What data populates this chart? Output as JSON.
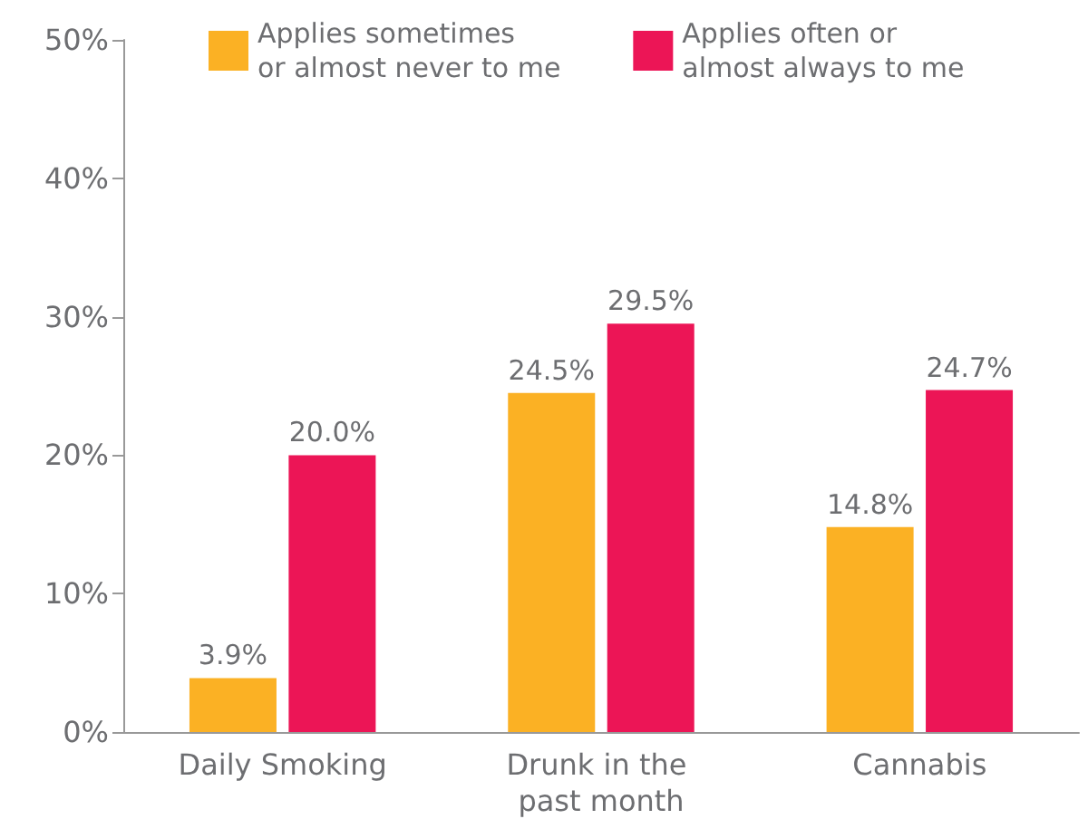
{
  "chart_data": {
    "type": "bar",
    "categories": [
      "Daily Smoking",
      "Drunk in the past month",
      "Cannabis"
    ],
    "series": [
      {
        "name": "Applies sometimes\nor almost never to me",
        "color": "#fbb124",
        "values": [
          3.9,
          24.5,
          14.8
        ],
        "value_labels": [
          "3.9%",
          "24.5%",
          "14.8%"
        ]
      },
      {
        "name": "Applies often or\nalmost always to me",
        "color": "#ec1556",
        "values": [
          20.0,
          29.5,
          24.7
        ],
        "value_labels": [
          "20.0%",
          "29.5%",
          "24.7%"
        ]
      }
    ],
    "ylim": [
      0,
      50
    ],
    "yticks": [
      {
        "value": 0,
        "label": "0%"
      },
      {
        "value": 10,
        "label": "10%"
      },
      {
        "value": 20,
        "label": "20%"
      },
      {
        "value": 30,
        "label": "30%"
      },
      {
        "value": 40,
        "label": "40%"
      },
      {
        "value": 50,
        "label": "50%"
      }
    ],
    "grid": false,
    "legend": "top"
  }
}
